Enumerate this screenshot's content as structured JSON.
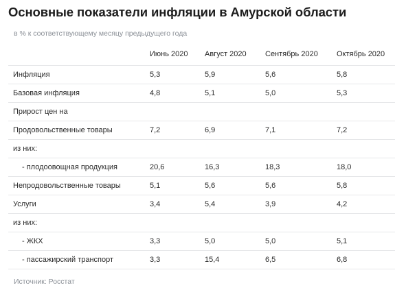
{
  "title": "Основные показатели инфляции в Амурской области",
  "subtitle": "в % к соответствующему месяцу предыдущего года",
  "columns": [
    "Июнь 2020",
    "Август 2020",
    "Сентябрь 2020",
    "Октябрь 2020"
  ],
  "rows": [
    {
      "label": "Инфляция",
      "indent": false,
      "values": [
        "5,3",
        "5,9",
        "5,6",
        "5,8"
      ]
    },
    {
      "label": "Базовая инфляция",
      "indent": false,
      "values": [
        "4,8",
        "5,1",
        "5,0",
        "5,3"
      ]
    },
    {
      "label": "Прирост цен на",
      "indent": false,
      "values": [
        "",
        "",
        "",
        ""
      ]
    },
    {
      "label": "Продовольственные товары",
      "indent": false,
      "values": [
        "7,2",
        "6,9",
        "7,1",
        "7,2"
      ]
    },
    {
      "label": "из них:",
      "indent": false,
      "values": [
        "",
        "",
        "",
        ""
      ]
    },
    {
      "label": "- плодоовощная продукция",
      "indent": true,
      "values": [
        "20,6",
        "16,3",
        "18,3",
        "18,0"
      ]
    },
    {
      "label": "Непродовольственные товары",
      "indent": false,
      "values": [
        "5,1",
        "5,6",
        "5,6",
        "5,8"
      ]
    },
    {
      "label": "Услуги",
      "indent": false,
      "values": [
        "3,4",
        "5,4",
        "3,9",
        "4,2"
      ]
    },
    {
      "label": "из них:",
      "indent": false,
      "values": [
        "",
        "",
        "",
        ""
      ]
    },
    {
      "label": "- ЖКХ",
      "indent": true,
      "values": [
        "3,3",
        "5,0",
        "5,0",
        "5,1"
      ]
    },
    {
      "label": "- пассажирский транспорт",
      "indent": true,
      "values": [
        "3,3",
        "15,4",
        "6,5",
        "6,8"
      ]
    }
  ],
  "source": "Источник: Росстат",
  "chart_data": {
    "type": "table",
    "title": "Основные показатели инфляции в Амурской области",
    "subtitle": "в % к соответствующему месяцу предыдущего года",
    "columns": [
      "Июнь 2020",
      "Август 2020",
      "Сентябрь 2020",
      "Октябрь 2020"
    ],
    "rows": [
      {
        "label": "Инфляция",
        "values": [
          5.3,
          5.9,
          5.6,
          5.8
        ]
      },
      {
        "label": "Базовая инфляция",
        "values": [
          4.8,
          5.1,
          5.0,
          5.3
        ]
      },
      {
        "label": "Продовольственные товары",
        "values": [
          7.2,
          6.9,
          7.1,
          7.2
        ]
      },
      {
        "label": "- плодоовощная продукция",
        "values": [
          20.6,
          16.3,
          18.3,
          18.0
        ]
      },
      {
        "label": "Непродовольственные товары",
        "values": [
          5.1,
          5.6,
          5.6,
          5.8
        ]
      },
      {
        "label": "Услуги",
        "values": [
          3.4,
          5.4,
          3.9,
          4.2
        ]
      },
      {
        "label": "- ЖКХ",
        "values": [
          3.3,
          5.0,
          5.0,
          5.1
        ]
      },
      {
        "label": "- пассажирский транспорт",
        "values": [
          3.3,
          15.4,
          6.5,
          6.8
        ]
      }
    ],
    "source": "Источник: Росстат"
  }
}
